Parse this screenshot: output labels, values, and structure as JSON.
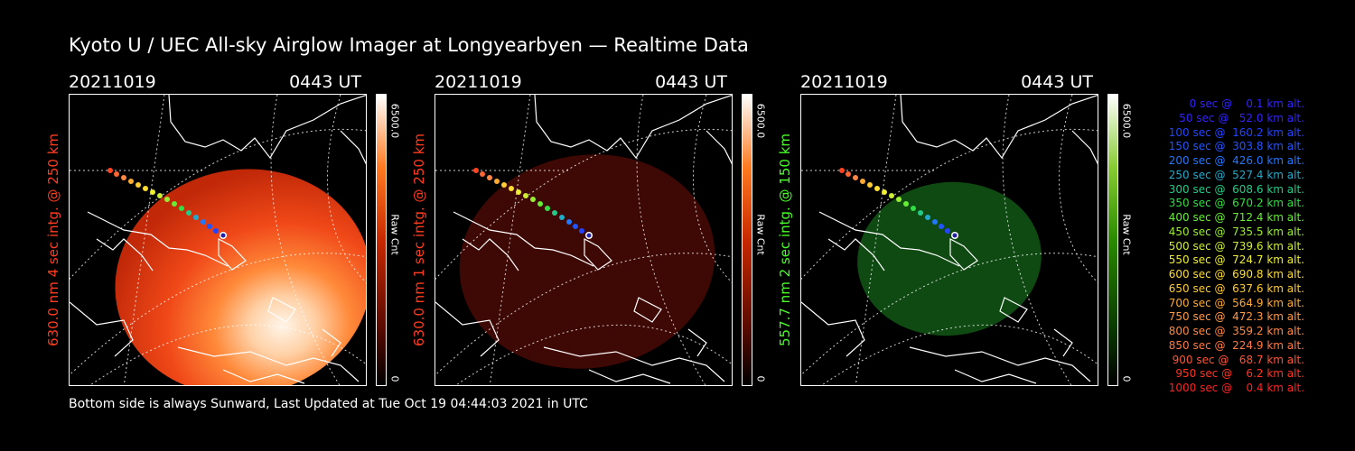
{
  "title": "Kyoto U / UEC All-sky Airglow Imager at Longyearbyen — Realtime Data",
  "footer": "Bottom side is always Sunward, Last Updated at Tue Oct 19 04:44:03 2021 in UTC",
  "panels": [
    {
      "date": "20211019",
      "time": "0443 UT",
      "ylabel": "630.0 nm 4 sec intg. @ 250 km",
      "label_color": "#ff3b1f",
      "cbar_max": "6500.0",
      "cbar_min": "0",
      "cbar_label": "Raw Cnt",
      "cbar_colors": [
        "#000000",
        "#ff2a00",
        "#ffffff"
      ],
      "brightness": "bright red"
    },
    {
      "date": "20211019",
      "time": "0443 UT",
      "ylabel": "630.0 nm 1 sec intg. @ 250 km",
      "label_color": "#ff3b1f",
      "cbar_max": "6500.0",
      "cbar_min": "0",
      "cbar_label": "Raw Cnt",
      "cbar_colors": [
        "#000000",
        "#ff2a00",
        "#ffffff"
      ],
      "brightness": "dim red"
    },
    {
      "date": "20211019",
      "time": "0443 UT",
      "ylabel": "557.7 nm 2 sec intg. @ 150 km",
      "label_color": "#44ff22",
      "cbar_max": "6500.0",
      "cbar_min": "0",
      "cbar_label": "Raw Cnt",
      "cbar_colors": [
        "#000000",
        "#44cc00",
        "#ffffff"
      ],
      "brightness": "green"
    }
  ],
  "legend": [
    {
      "text": "   0 sec @    0.1 km alt.",
      "color": "#3322ff"
    },
    {
      "text": "  50 sec @   52.0 km alt.",
      "color": "#3322ff"
    },
    {
      "text": " 100 sec @  160.2 km alt.",
      "color": "#2244ff"
    },
    {
      "text": " 150 sec @  303.8 km alt.",
      "color": "#2255ff"
    },
    {
      "text": " 200 sec @  426.0 km alt.",
      "color": "#2277ff"
    },
    {
      "text": " 250 sec @  527.4 km alt.",
      "color": "#22aacc"
    },
    {
      "text": " 300 sec @  608.6 km alt.",
      "color": "#22cc88"
    },
    {
      "text": " 350 sec @  670.2 km alt.",
      "color": "#33dd44"
    },
    {
      "text": " 400 sec @  712.4 km alt.",
      "color": "#66ee33"
    },
    {
      "text": " 450 sec @  735.5 km alt.",
      "color": "#99ee33"
    },
    {
      "text": " 500 sec @  739.6 km alt.",
      "color": "#ccee33"
    },
    {
      "text": " 550 sec @  724.7 km alt.",
      "color": "#eeee33"
    },
    {
      "text": " 600 sec @  690.8 km alt.",
      "color": "#ffdd33"
    },
    {
      "text": " 650 sec @  637.6 km alt.",
      "color": "#ffcc33"
    },
    {
      "text": " 700 sec @  564.9 km alt.",
      "color": "#ffaa33"
    },
    {
      "text": " 750 sec @  472.3 km alt.",
      "color": "#ff9944"
    },
    {
      "text": " 800 sec @  359.2 km alt.",
      "color": "#ff8844"
    },
    {
      "text": " 850 sec @  224.9 km alt.",
      "color": "#ff7744"
    },
    {
      "text": " 900 sec @   68.7 km alt.",
      "color": "#ff5533"
    },
    {
      "text": " 950 sec @    6.2 km alt.",
      "color": "#ff3322"
    },
    {
      "text": "1000 sec @    0.4 km alt.",
      "color": "#ff2222"
    }
  ]
}
